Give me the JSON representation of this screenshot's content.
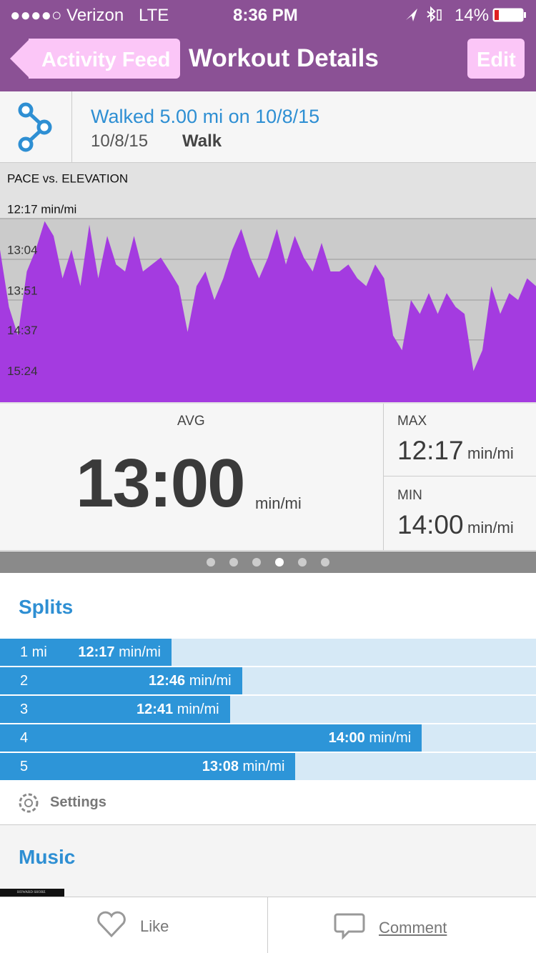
{
  "status_bar": {
    "carrier": "●●●●○ Verizon",
    "network": "LTE",
    "time": "8:36 PM",
    "battery": "14%"
  },
  "nav": {
    "back": "Activity Feed",
    "title": "Workout Details",
    "edit": "Edit"
  },
  "workout": {
    "title": "Walked 5.00 mi on 10/8/15",
    "date": "10/8/15",
    "activity": "Walk"
  },
  "pace_chart": {
    "type": "area",
    "title": "PACE vs. ELEVATION",
    "color": "#a43be0",
    "ylim": [
      949,
      737
    ],
    "yticks": [
      {
        "value": 737,
        "label": "12:17 min/mi"
      },
      {
        "value": 784,
        "label": "13:04"
      },
      {
        "value": 831,
        "label": "13:51"
      },
      {
        "value": 877,
        "label": "14:37"
      },
      {
        "value": 924,
        "label": "15:24"
      }
    ],
    "grid": true,
    "values": [
      773,
      839,
      872,
      798,
      773,
      740,
      757,
      806,
      773,
      815,
      744,
      806,
      757,
      790,
      798,
      757,
      798,
      790,
      782,
      798,
      815,
      868,
      815,
      798,
      831,
      806,
      773,
      749,
      782,
      806,
      782,
      749,
      790,
      757,
      782,
      798,
      765,
      798,
      798,
      790,
      806,
      815,
      790,
      806,
      872,
      889,
      831,
      847,
      823,
      847,
      823,
      839,
      847,
      913,
      889,
      815,
      847,
      823,
      831,
      806,
      815
    ]
  },
  "stats": {
    "avg": {
      "label": "AVG",
      "value": "13:00",
      "unit": "min/mi"
    },
    "max": {
      "label": "MAX",
      "value": "12:17",
      "unit": "min/mi"
    },
    "min": {
      "label": "MIN",
      "value": "14:00",
      "unit": "min/mi"
    }
  },
  "splits": {
    "title": "Splits",
    "rows": [
      {
        "label": "1 mi",
        "pace": {
          "value": 737,
          "label": "12:17"
        },
        "unit": "min/mi"
      },
      {
        "label": "2",
        "pace": {
          "value": 766,
          "label": "12:46"
        },
        "unit": "min/mi"
      },
      {
        "label": "3",
        "pace": {
          "value": 761,
          "label": "12:41"
        },
        "unit": "min/mi"
      },
      {
        "label": "4",
        "pace": {
          "value": 840,
          "label": "14:00"
        },
        "unit": "min/mi"
      },
      {
        "label": "5",
        "pace": {
          "value": 788,
          "label": "13:08"
        },
        "unit": "min/mi"
      }
    ],
    "settings": "Settings"
  },
  "music": {
    "title": "Music",
    "album": "HOWARD SHORE"
  },
  "footer": {
    "like": "Like",
    "comment": "Comment"
  }
}
